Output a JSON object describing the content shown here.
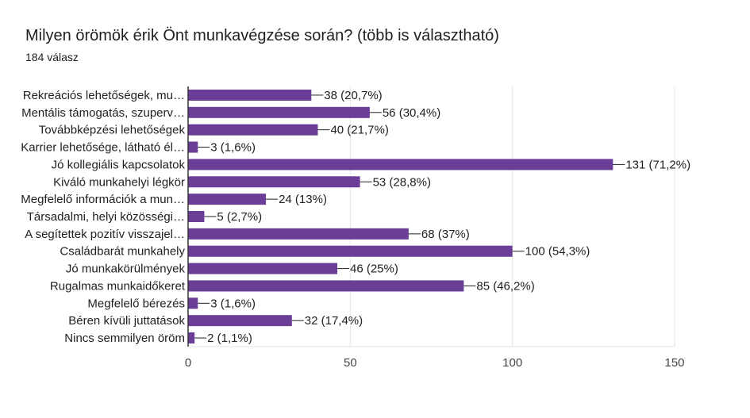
{
  "chart_data": {
    "type": "bar",
    "orientation": "horizontal",
    "title": "Milyen örömök érik Önt munkavégzése során? (több is választható)",
    "subtitle": "184 válasz",
    "categories": [
      "Rekreációs lehetőségek, mu…",
      "Mentális támogatás, szuperv…",
      "Továbbképzési lehetőségek",
      "Karrier lehetősége, látható él…",
      "Jó kollegiális kapcsolatok",
      "Kiváló munkahelyi légkör",
      "Megfelelő információk a mun…",
      "Társadalmi, helyi közösségi…",
      "A segítettek pozitív visszajel…",
      "Családbarát munkahely",
      "Jó munkakörülmények",
      "Rugalmas munkaidőkeret",
      "Megfelelő bérezés",
      "Béren kívüli juttatások",
      "Nincs semmilyen öröm"
    ],
    "values": [
      38,
      56,
      40,
      3,
      131,
      53,
      24,
      5,
      68,
      100,
      46,
      85,
      3,
      32,
      2
    ],
    "value_labels": [
      "38 (20,7%)",
      "56 (30,4%)",
      "40 (21,7%)",
      "3 (1,6%)",
      "131 (71,2%)",
      "53 (28,8%)",
      "24 (13%)",
      "5 (2,7%)",
      "68 (37%)",
      "100 (54,3%)",
      "46 (25%)",
      "85 (46,2%)",
      "3 (1,6%)",
      "32 (17,4%)",
      "2 (1,1%)"
    ],
    "xlim": [
      0,
      150
    ],
    "xticks": [
      0,
      50,
      100,
      150
    ],
    "bar_color": "#6a3d96",
    "grid": true
  }
}
